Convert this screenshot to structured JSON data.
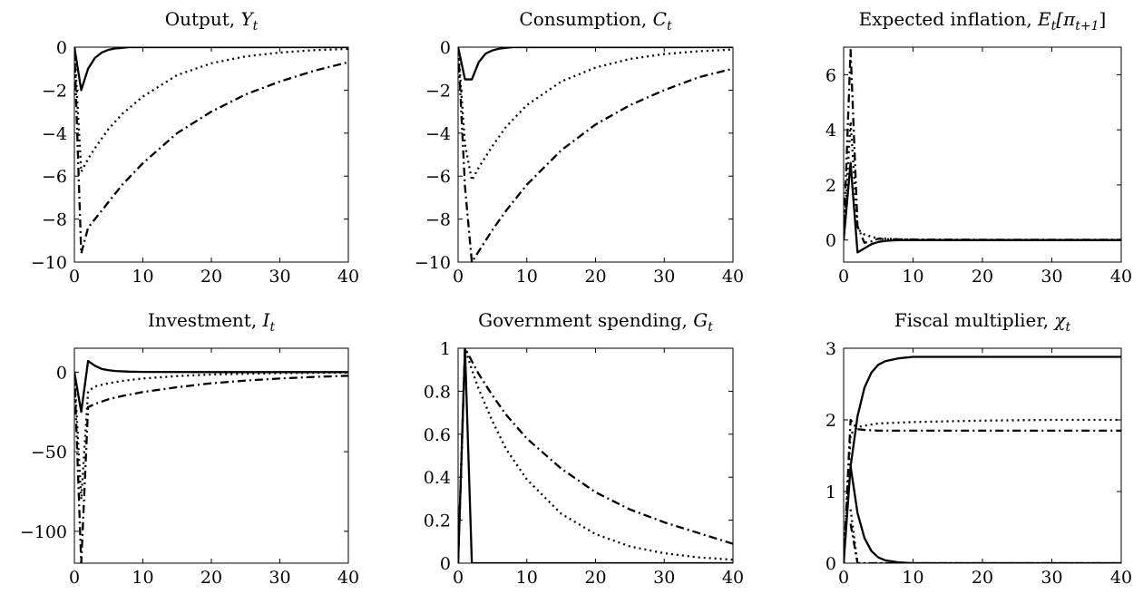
{
  "chart_data": [
    {
      "type": "line",
      "title": "Output, Yt",
      "title_main": "Output, ",
      "title_math": "Y",
      "title_sub": "t",
      "xlim": [
        0,
        40
      ],
      "ylim": [
        -10,
        0
      ],
      "xticks": [
        0,
        10,
        20,
        30,
        40
      ],
      "yticks": [
        0,
        -2,
        -4,
        -6,
        -8,
        -10
      ],
      "xtick_labels": [
        "0",
        "10",
        "20",
        "30",
        "40"
      ],
      "ytick_labels": [
        "0",
        "−2",
        "−4",
        "−6",
        "−8",
        "−10"
      ],
      "series": [
        {
          "style": "solid",
          "x": [
            0,
            1,
            2,
            3,
            4,
            5,
            6,
            7,
            8,
            10,
            15,
            20,
            30,
            40
          ],
          "y": [
            0,
            -2.0,
            -1.0,
            -0.5,
            -0.25,
            -0.12,
            -0.06,
            -0.03,
            0,
            0,
            0,
            0,
            0,
            0
          ]
        },
        {
          "style": "dotted",
          "x": [
            0,
            1,
            2,
            3,
            5,
            7,
            10,
            15,
            20,
            25,
            30,
            35,
            40
          ],
          "y": [
            0,
            -5.8,
            -5.2,
            -4.7,
            -3.8,
            -3.1,
            -2.3,
            -1.3,
            -0.75,
            -0.43,
            -0.25,
            -0.14,
            -0.08
          ]
        },
        {
          "style": "dashdot",
          "x": [
            0,
            1,
            2,
            3,
            5,
            7,
            10,
            15,
            20,
            25,
            30,
            35,
            40
          ],
          "y": [
            0,
            -9.6,
            -8.4,
            -8.0,
            -7.2,
            -6.4,
            -5.4,
            -4.0,
            -3.0,
            -2.2,
            -1.6,
            -1.1,
            -0.7
          ]
        }
      ]
    },
    {
      "type": "line",
      "title": "Consumption, Ct",
      "title_main": "Consumption, ",
      "title_math": "C",
      "title_sub": "t",
      "xlim": [
        0,
        40
      ],
      "ylim": [
        -10,
        0
      ],
      "xticks": [
        0,
        10,
        20,
        30,
        40
      ],
      "yticks": [
        0,
        -2,
        -4,
        -6,
        -8,
        -10
      ],
      "xtick_labels": [
        "0",
        "10",
        "20",
        "30",
        "40"
      ],
      "ytick_labels": [
        "0",
        "−2",
        "−4",
        "−6",
        "−8",
        "−10"
      ],
      "series": [
        {
          "style": "solid",
          "x": [
            0,
            1,
            2,
            3,
            4,
            5,
            6,
            7,
            8,
            10,
            20,
            30,
            40
          ],
          "y": [
            0,
            -1.5,
            -1.5,
            -0.7,
            -0.3,
            -0.15,
            -0.07,
            -0.03,
            0,
            0,
            0,
            0,
            0
          ]
        },
        {
          "style": "dotted",
          "x": [
            0,
            1,
            2,
            3,
            5,
            7,
            10,
            15,
            20,
            25,
            30,
            35,
            40
          ],
          "y": [
            0,
            -4.5,
            -6.2,
            -5.6,
            -4.6,
            -3.7,
            -2.7,
            -1.6,
            -0.95,
            -0.55,
            -0.32,
            -0.19,
            -0.11
          ]
        },
        {
          "style": "dashdot",
          "x": [
            0,
            1,
            2,
            3,
            5,
            7,
            10,
            15,
            20,
            25,
            30,
            35,
            40
          ],
          "y": [
            0,
            -6.5,
            -10.0,
            -9.5,
            -8.5,
            -7.6,
            -6.4,
            -4.8,
            -3.6,
            -2.7,
            -2.0,
            -1.4,
            -1.0
          ]
        }
      ]
    },
    {
      "type": "line",
      "title": "Expected inflation, Et[πt+1]",
      "title_main": "Expected inflation, ",
      "title_math": "E",
      "title_sub": "t",
      "title_tail": "[π",
      "title_sub2": "t+1",
      "title_end": "]",
      "xlim": [
        0,
        40
      ],
      "ylim": [
        -0.8,
        7.0
      ],
      "xticks": [
        0,
        10,
        20,
        30,
        40
      ],
      "yticks": [
        0,
        2,
        4,
        6
      ],
      "xtick_labels": [
        "0",
        "10",
        "20",
        "30",
        "40"
      ],
      "ytick_labels": [
        "0",
        "2",
        "4",
        "6"
      ],
      "series": [
        {
          "style": "solid",
          "x": [
            0,
            1,
            2,
            3,
            4,
            5,
            6,
            8,
            10,
            20,
            30,
            40
          ],
          "y": [
            0,
            2.8,
            -0.45,
            -0.3,
            -0.15,
            -0.07,
            -0.03,
            0,
            0,
            0,
            0,
            0
          ]
        },
        {
          "style": "dotted",
          "x": [
            0,
            1,
            2,
            3,
            4,
            5,
            10,
            20,
            30,
            40
          ],
          "y": [
            0,
            4.3,
            0.4,
            0.2,
            0.12,
            0.06,
            0.01,
            0,
            0,
            0
          ]
        },
        {
          "style": "dashdot",
          "x": [
            0,
            1,
            2,
            3,
            4,
            5,
            6,
            10,
            20,
            30,
            40
          ],
          "y": [
            0,
            6.9,
            0.5,
            -0.1,
            -0.05,
            0.05,
            0.03,
            0.02,
            0.01,
            0.01,
            0.01
          ]
        }
      ]
    },
    {
      "type": "line",
      "title": "Investment, It",
      "title_main": "Investment, ",
      "title_math": "I",
      "title_sub": "t",
      "xlim": [
        0,
        40
      ],
      "ylim": [
        -120,
        15
      ],
      "xticks": [
        0,
        10,
        20,
        30,
        40
      ],
      "yticks": [
        0,
        -50,
        -100
      ],
      "xtick_labels": [
        "0",
        "10",
        "20",
        "30",
        "40"
      ],
      "ytick_labels": [
        "0",
        "−50",
        "−100"
      ],
      "series": [
        {
          "style": "solid",
          "x": [
            0,
            1,
            2,
            3,
            4,
            5,
            6,
            8,
            10,
            20,
            30,
            40
          ],
          "y": [
            0,
            -25,
            7,
            4,
            2,
            1.2,
            0.7,
            0.3,
            0.1,
            0,
            0,
            0
          ]
        },
        {
          "style": "dotted",
          "x": [
            0,
            1,
            2,
            3,
            5,
            7,
            10,
            15,
            20,
            30,
            40
          ],
          "y": [
            0,
            -80,
            -12,
            -9,
            -7,
            -5.5,
            -4,
            -2.5,
            -1.5,
            -0.6,
            -0.3
          ]
        },
        {
          "style": "dashdot",
          "x": [
            0,
            1,
            2,
            3,
            5,
            7,
            10,
            15,
            20,
            25,
            30,
            35,
            40
          ],
          "y": [
            0,
            -120,
            -22,
            -20,
            -17,
            -15,
            -12.5,
            -9.5,
            -7,
            -5.3,
            -4,
            -3,
            -2.3
          ]
        }
      ]
    },
    {
      "type": "line",
      "title": "Government spending, Gt",
      "title_main": "Government spending, ",
      "title_math": "G",
      "title_sub": "t",
      "xlim": [
        0,
        40
      ],
      "ylim": [
        0,
        1
      ],
      "xticks": [
        0,
        10,
        20,
        30,
        40
      ],
      "yticks": [
        0,
        0.2,
        0.4,
        0.6,
        0.8,
        1
      ],
      "xtick_labels": [
        "0",
        "10",
        "20",
        "30",
        "40"
      ],
      "ytick_labels": [
        "0",
        "0.2",
        "0.4",
        "0.6",
        "0.8",
        "1"
      ],
      "series": [
        {
          "style": "solid",
          "x": [
            0,
            1,
            2,
            40
          ],
          "y": [
            0,
            1,
            0,
            0
          ]
        },
        {
          "style": "dotted",
          "x": [
            0,
            1,
            2,
            3,
            5,
            7,
            10,
            15,
            20,
            25,
            30,
            35,
            40
          ],
          "y": [
            0,
            1,
            0.9,
            0.81,
            0.66,
            0.53,
            0.39,
            0.23,
            0.135,
            0.078,
            0.046,
            0.027,
            0.016
          ]
        },
        {
          "style": "dashdot",
          "x": [
            0,
            1,
            2,
            3,
            5,
            7,
            10,
            15,
            20,
            25,
            30,
            35,
            40
          ],
          "y": [
            0,
            1,
            0.94,
            0.88,
            0.78,
            0.69,
            0.58,
            0.44,
            0.33,
            0.25,
            0.19,
            0.14,
            0.09
          ]
        }
      ]
    },
    {
      "type": "line",
      "title": "Fiscal multiplier, χt",
      "title_main": "Fiscal multiplier, ",
      "title_math": "χ",
      "title_sub": "t",
      "xlim": [
        0,
        40
      ],
      "ylim": [
        0,
        3
      ],
      "xticks": [
        0,
        10,
        20,
        30,
        40
      ],
      "yticks": [
        0,
        1,
        2,
        3
      ],
      "xtick_labels": [
        "0",
        "10",
        "20",
        "30",
        "40"
      ],
      "ytick_labels": [
        "0",
        "1",
        "2",
        "3"
      ],
      "series": [
        {
          "style": "solid",
          "x": [
            0,
            1,
            2,
            3,
            4,
            5,
            6,
            8,
            10,
            15,
            20,
            30,
            40
          ],
          "y": [
            0,
            1.35,
            2.05,
            2.45,
            2.66,
            2.77,
            2.82,
            2.86,
            2.88,
            2.88,
            2.88,
            2.88,
            2.88
          ]
        },
        {
          "style": "solid",
          "x": [
            1,
            2,
            3,
            4,
            5,
            6,
            8,
            10,
            20,
            40
          ],
          "y": [
            1.35,
            0.7,
            0.35,
            0.17,
            0.08,
            0.04,
            0.01,
            0,
            0,
            0
          ]
        },
        {
          "style": "dotted",
          "x": [
            0,
            1,
            2,
            3,
            5,
            10,
            20,
            30,
            40
          ],
          "y": [
            0,
            1.8,
            1.9,
            1.92,
            1.95,
            1.97,
            1.99,
            2.0,
            2.0
          ]
        },
        {
          "style": "dotted",
          "x": [
            1,
            2,
            3,
            40
          ],
          "y": [
            0.75,
            0,
            0,
            0
          ]
        },
        {
          "style": "dashdot",
          "x": [
            0,
            1,
            2,
            3,
            5,
            10,
            20,
            30,
            40
          ],
          "y": [
            0,
            2.0,
            1.87,
            1.86,
            1.85,
            1.85,
            1.85,
            1.85,
            1.85
          ]
        },
        {
          "style": "dashdot",
          "x": [
            1,
            2,
            40
          ],
          "y": [
            0.55,
            0,
            0
          ]
        }
      ]
    }
  ]
}
